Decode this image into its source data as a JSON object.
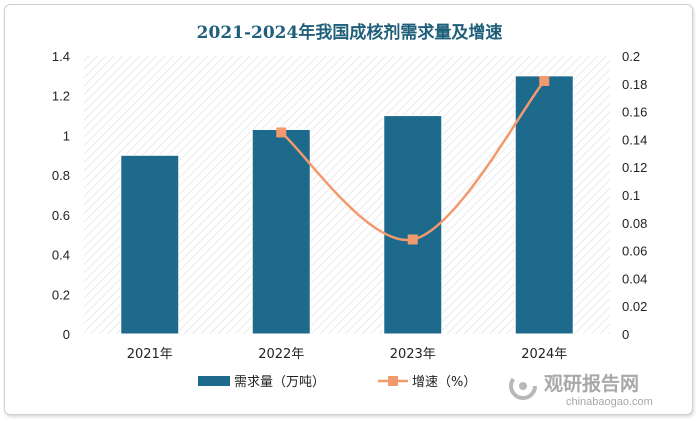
{
  "chart_data": {
    "type": "bar",
    "title": "2021-2024年我国成核剂需求量及增速",
    "categories": [
      "2021年",
      "2022年",
      "2023年",
      "2024年"
    ],
    "series": [
      {
        "name": "需求量（万吨）",
        "type": "bar",
        "axis": "left",
        "color": "#1d6a8d",
        "values": [
          0.9,
          1.03,
          1.1,
          1.3
        ]
      },
      {
        "name": "增速（%）",
        "type": "line",
        "axis": "right",
        "color": "#f29a6e",
        "values": [
          null,
          0.145,
          0.068,
          0.182
        ]
      }
    ],
    "y_left": {
      "min": 0,
      "max": 1.4,
      "step": 0.2,
      "ticks": [
        "0",
        "0.2",
        "0.4",
        "0.6",
        "0.8",
        "1",
        "1.2",
        "1.4"
      ]
    },
    "y_right": {
      "min": 0,
      "max": 0.2,
      "step": 0.02,
      "ticks": [
        "0",
        "0.02",
        "0.04",
        "0.06",
        "0.08",
        "0.1",
        "0.12",
        "0.14",
        "0.16",
        "0.18",
        "0.2"
      ]
    },
    "legend": {
      "position": "bottom"
    },
    "grid": false
  },
  "watermark": {
    "text_cn": "观研报告网",
    "text_en": "chinabaogao.com"
  }
}
